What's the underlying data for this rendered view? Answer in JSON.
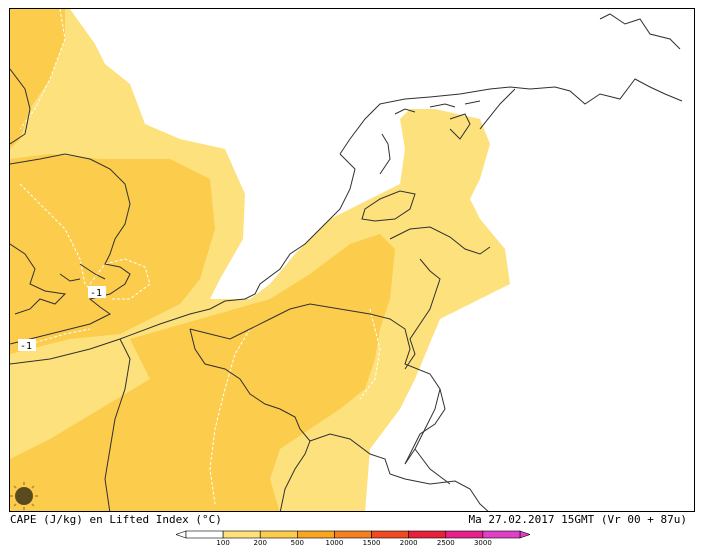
{
  "map": {
    "caption_left": "CAPE (J/kg) en Lifted Index (°C)",
    "caption_right": "Ma 27.02.2017 15GMT (Vr 00 + 87u)",
    "contour_labels": [
      "-1",
      "-1"
    ],
    "colors": {
      "cape_100_200": "#fde17c",
      "cape_200_500": "#fccc4c",
      "background": "#ffffff",
      "coastline": "#303030",
      "lifted_index_contour": "#ffffff"
    }
  },
  "legend": {
    "ticks": [
      "100",
      "200",
      "500",
      "1000",
      "1500",
      "2000",
      "2500",
      "3000"
    ],
    "colors": [
      "#ffffff",
      "#fde17c",
      "#fccc4c",
      "#f9a51f",
      "#f48020",
      "#ef4a22",
      "#e8203a",
      "#e8208c",
      "#e040c8"
    ]
  }
}
